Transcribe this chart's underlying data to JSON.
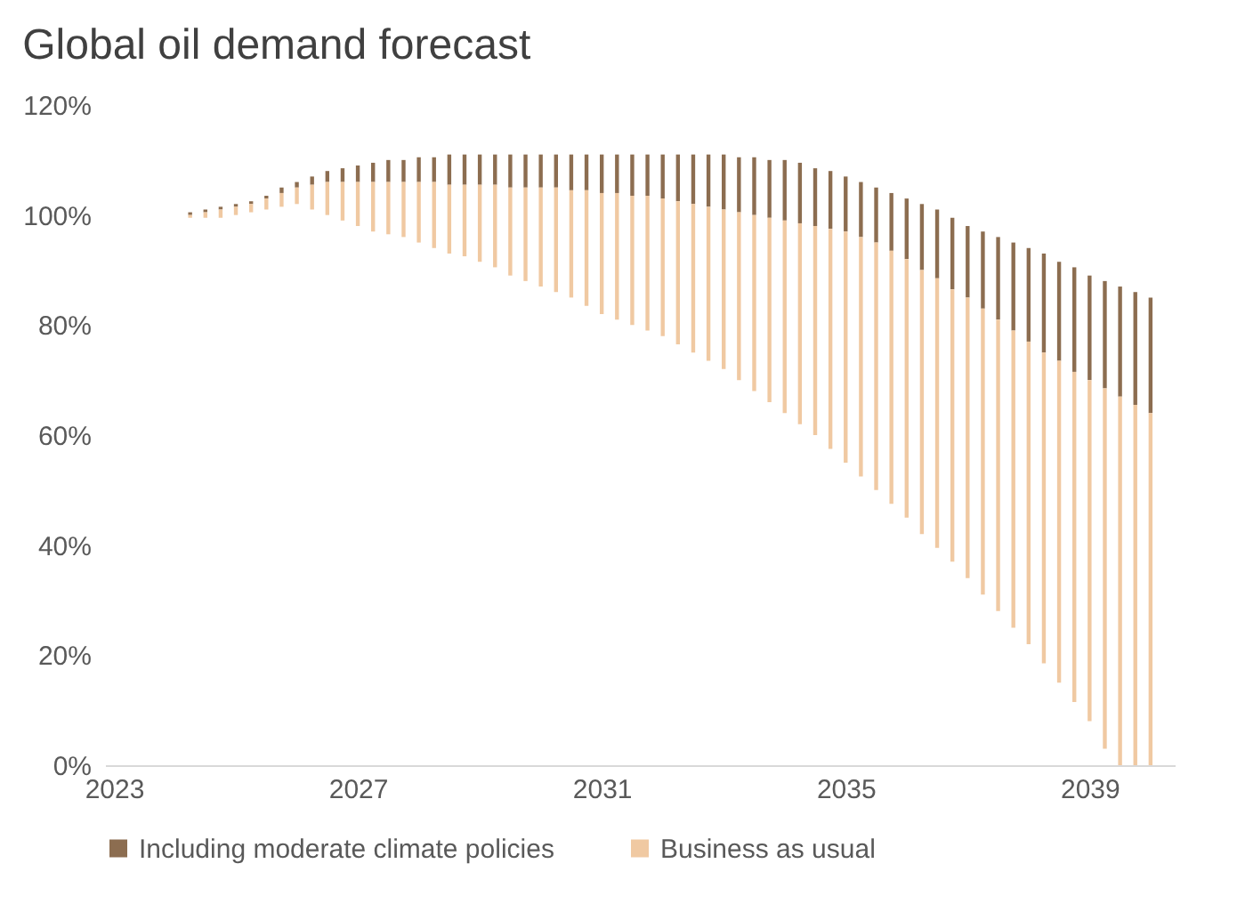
{
  "chart_data": {
    "type": "bar",
    "title": "Global oil demand forecast",
    "x": [
      2024.25,
      2024.5,
      2024.75,
      2025,
      2025.25,
      2025.5,
      2025.75,
      2026,
      2026.25,
      2026.5,
      2026.75,
      2027,
      2027.25,
      2027.5,
      2027.75,
      2028,
      2028.25,
      2028.5,
      2028.75,
      2029,
      2029.25,
      2029.5,
      2029.75,
      2030,
      2030.25,
      2030.5,
      2030.75,
      2031,
      2031.25,
      2031.5,
      2031.75,
      2032,
      2032.25,
      2032.5,
      2032.75,
      2033,
      2033.25,
      2033.5,
      2033.75,
      2034,
      2034.25,
      2034.5,
      2034.75,
      2035,
      2035.25,
      2035.5,
      2035.75,
      2036,
      2036.25,
      2036.5,
      2036.75,
      2037,
      2037.25,
      2037.5,
      2037.75,
      2038,
      2038.25,
      2038.5,
      2038.75,
      2039,
      2039.25,
      2039.5,
      2039.75,
      2040
    ],
    "series": [
      {
        "name": "Including moderate climate policies",
        "color": "#8c6d50",
        "values": [
          0.5,
          0.5,
          0.5,
          0.5,
          0.5,
          0.5,
          1,
          1,
          1.5,
          2,
          2.5,
          3,
          3.5,
          4,
          4,
          4.5,
          4.5,
          5.5,
          5.5,
          5.5,
          5.5,
          6,
          6,
          6,
          6,
          6.5,
          6.5,
          7,
          7,
          7.5,
          7.5,
          8,
          8.5,
          9,
          9.5,
          10,
          10,
          10.5,
          10.5,
          11,
          11,
          10.5,
          10.5,
          10,
          10,
          10,
          10.5,
          11,
          12,
          12.5,
          13,
          13,
          14,
          15,
          16,
          17,
          18,
          18,
          19,
          19,
          19.5,
          20,
          20.5,
          21
        ],
        "base": [
          100,
          100.5,
          101,
          101.5,
          102,
          103,
          104,
          105,
          105.5,
          106,
          106,
          106,
          106,
          106,
          106,
          106,
          106,
          105.5,
          105.5,
          105.5,
          105.5,
          105,
          105,
          105,
          105,
          104.5,
          104.5,
          104,
          104,
          103.5,
          103.5,
          103,
          102.5,
          102,
          101.5,
          101,
          100.5,
          100,
          99.5,
          99,
          98.5,
          98,
          97.5,
          97,
          96,
          95,
          93.5,
          92,
          90,
          88.5,
          86.5,
          85,
          83,
          81,
          79,
          77,
          75,
          73.5,
          71.5,
          70,
          68.5,
          67,
          65.5,
          64
        ]
      },
      {
        "name": "Business as usual",
        "color": "#f0c9a2",
        "values": [
          0.5,
          1,
          1.5,
          1.5,
          1.5,
          2,
          2.5,
          3,
          4.5,
          6,
          7,
          8,
          9,
          9.5,
          10,
          11,
          12,
          12.5,
          13,
          14,
          15,
          16,
          17,
          18,
          19,
          19.5,
          21,
          22,
          23,
          23.5,
          24.5,
          25,
          26,
          27,
          28,
          29,
          30.5,
          32,
          33.5,
          35,
          36.5,
          38,
          40,
          42,
          43.5,
          45,
          46,
          47,
          48,
          49,
          49.5,
          51,
          52,
          53,
          54,
          55,
          56.5,
          58.5,
          60,
          62,
          65.5,
          67,
          65.5,
          64
        ],
        "base": [
          99.5,
          99.5,
          99.5,
          100,
          100.5,
          101,
          101.5,
          102,
          101,
          100,
          99,
          98,
          97,
          96.5,
          96,
          95,
          94,
          93,
          92.5,
          91.5,
          90.5,
          89,
          88,
          87,
          86,
          85,
          83.5,
          82,
          81,
          80,
          79,
          78,
          76.5,
          75,
          73.5,
          72,
          70,
          68,
          66,
          64,
          62,
          60,
          57.5,
          55,
          52.5,
          50,
          47.5,
          45,
          42,
          39.5,
          37,
          34,
          31,
          28,
          25,
          22,
          18.5,
          15,
          11.5,
          8,
          3,
          0,
          0,
          0
        ]
      }
    ],
    "xlim": [
      2023,
      2040.25
    ],
    "xticks": [
      2023,
      2027,
      2031,
      2035,
      2039
    ],
    "ylim": [
      0,
      120
    ],
    "yticks": [
      {
        "value": 0,
        "label": "0%"
      },
      {
        "value": 20,
        "label": "20%"
      },
      {
        "value": 40,
        "label": "40%"
      },
      {
        "value": 60,
        "label": "60%"
      },
      {
        "value": 80,
        "label": "80%"
      },
      {
        "value": 100,
        "label": "100%"
      },
      {
        "value": 120,
        "label": "120%"
      }
    ],
    "legend": "bottom"
  }
}
